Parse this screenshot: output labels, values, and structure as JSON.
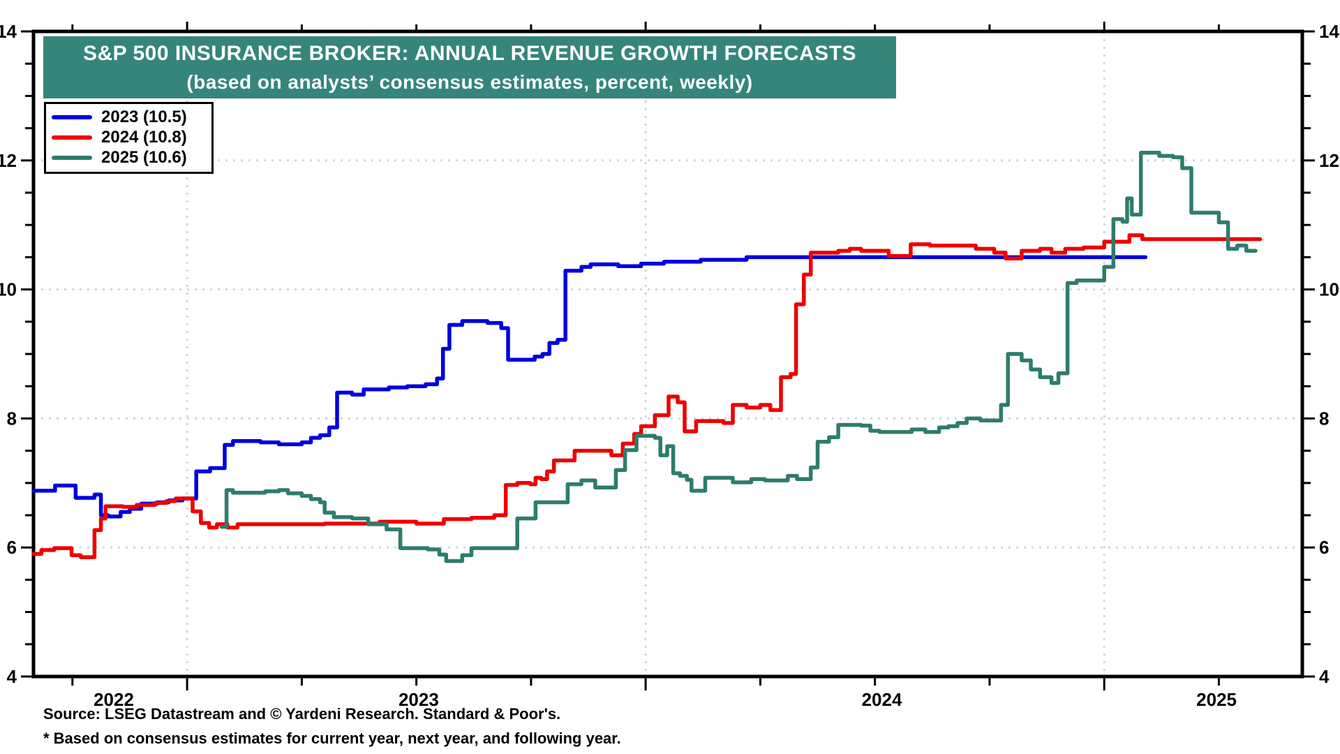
{
  "colors": {
    "banner_bg": "#35857a",
    "grid": "#d6d6d6",
    "axis": "#000000",
    "background": "#ffffff"
  },
  "chart_data": {
    "type": "line",
    "title": "S&P 500 INSURANCE BROKER: ANNUAL REVENUE GROWTH FORECASTS",
    "subtitle": "(based on analysts’ consensus estimates, percent, weekly)",
    "x_axis": {
      "min": 2022.665,
      "max": 2025.432,
      "gridlines": [
        2023,
        2024,
        2025
      ],
      "minor_tick_step": 0.25,
      "labels": [
        {
          "pos": 2022.84,
          "text": "2022"
        },
        {
          "pos": 2023.505,
          "text": "2023"
        },
        {
          "pos": 2024.515,
          "text": "2024"
        },
        {
          "pos": 2025.245,
          "text": "2025"
        }
      ]
    },
    "y_axis": {
      "min": 4,
      "max": 14,
      "minor_tick_step": 0.5,
      "label_values": [
        4,
        6,
        8,
        10,
        12,
        14
      ],
      "gridlines": [
        6,
        8,
        10,
        12
      ],
      "unit": "percent"
    },
    "legend": {
      "items": [
        {
          "label": "2023 (10.5)",
          "color": "#0000dd"
        },
        {
          "label": "2024 (10.8)",
          "color": "#ee0000"
        },
        {
          "label": "2025 (10.6)",
          "color": "#2e7c6c"
        }
      ]
    },
    "series": [
      {
        "name": "2023",
        "final_value": 10.5,
        "color": "#0000dd",
        "points": [
          [
            2022.665,
            6.88
          ],
          [
            2022.712,
            6.96
          ],
          [
            2022.757,
            6.77
          ],
          [
            2022.798,
            6.82
          ],
          [
            2022.812,
            6.5
          ],
          [
            2022.828,
            6.48
          ],
          [
            2022.855,
            6.55
          ],
          [
            2022.875,
            6.6
          ],
          [
            2022.9,
            6.68
          ],
          [
            2022.935,
            6.7
          ],
          [
            2022.96,
            6.73
          ],
          [
            2022.99,
            6.76
          ],
          [
            2023.02,
            7.18
          ],
          [
            2023.05,
            7.23
          ],
          [
            2023.082,
            7.59
          ],
          [
            2023.1,
            7.65
          ],
          [
            2023.16,
            7.63
          ],
          [
            2023.2,
            7.6
          ],
          [
            2023.25,
            7.63
          ],
          [
            2023.27,
            7.7
          ],
          [
            2023.29,
            7.74
          ],
          [
            2023.31,
            7.86
          ],
          [
            2023.327,
            8.4
          ],
          [
            2023.36,
            8.37
          ],
          [
            2023.385,
            8.45
          ],
          [
            2023.44,
            8.48
          ],
          [
            2023.48,
            8.5
          ],
          [
            2023.52,
            8.53
          ],
          [
            2023.545,
            8.62
          ],
          [
            2023.558,
            9.08
          ],
          [
            2023.572,
            9.45
          ],
          [
            2023.6,
            9.51
          ],
          [
            2023.655,
            9.48
          ],
          [
            2023.685,
            9.4
          ],
          [
            2023.7,
            8.91
          ],
          [
            2023.745,
            8.91
          ],
          [
            2023.758,
            8.96
          ],
          [
            2023.775,
            9.0
          ],
          [
            2023.79,
            9.17
          ],
          [
            2023.808,
            9.22
          ],
          [
            2023.825,
            10.29
          ],
          [
            2023.86,
            10.35
          ],
          [
            2023.88,
            10.39
          ],
          [
            2023.94,
            10.36
          ],
          [
            2023.99,
            10.4
          ],
          [
            2024.04,
            10.43
          ],
          [
            2024.12,
            10.46
          ],
          [
            2024.22,
            10.5
          ],
          [
            2025.09,
            10.5
          ]
        ]
      },
      {
        "name": "2024",
        "final_value": 10.8,
        "color": "#ee0000",
        "points": [
          [
            2022.665,
            5.9
          ],
          [
            2022.682,
            5.96
          ],
          [
            2022.71,
            5.99
          ],
          [
            2022.748,
            5.88
          ],
          [
            2022.768,
            5.85
          ],
          [
            2022.798,
            6.27
          ],
          [
            2022.812,
            6.45
          ],
          [
            2022.822,
            6.64
          ],
          [
            2022.86,
            6.63
          ],
          [
            2022.89,
            6.66
          ],
          [
            2022.93,
            6.69
          ],
          [
            2022.955,
            6.72
          ],
          [
            2022.975,
            6.76
          ],
          [
            2023.012,
            6.56
          ],
          [
            2023.03,
            6.38
          ],
          [
            2023.048,
            6.31
          ],
          [
            2023.065,
            6.36
          ],
          [
            2023.088,
            6.31
          ],
          [
            2023.11,
            6.36
          ],
          [
            2023.3,
            6.37
          ],
          [
            2023.42,
            6.4
          ],
          [
            2023.5,
            6.37
          ],
          [
            2023.56,
            6.44
          ],
          [
            2023.62,
            6.46
          ],
          [
            2023.67,
            6.5
          ],
          [
            2023.695,
            6.97
          ],
          [
            2023.72,
            7.0
          ],
          [
            2023.748,
            6.98
          ],
          [
            2023.76,
            7.08
          ],
          [
            2023.772,
            7.06
          ],
          [
            2023.785,
            7.18
          ],
          [
            2023.8,
            7.35
          ],
          [
            2023.845,
            7.5
          ],
          [
            2023.925,
            7.43
          ],
          [
            2023.95,
            7.61
          ],
          [
            2023.975,
            7.76
          ],
          [
            2023.99,
            7.88
          ],
          [
            2024.02,
            8.05
          ],
          [
            2024.05,
            8.34
          ],
          [
            2024.07,
            8.25
          ],
          [
            2024.085,
            7.8
          ],
          [
            2024.11,
            7.96
          ],
          [
            2024.17,
            7.93
          ],
          [
            2024.19,
            8.21
          ],
          [
            2024.22,
            8.17
          ],
          [
            2024.25,
            8.21
          ],
          [
            2024.272,
            8.13
          ],
          [
            2024.295,
            8.64
          ],
          [
            2024.316,
            8.69
          ],
          [
            2024.328,
            9.77
          ],
          [
            2024.345,
            10.23
          ],
          [
            2024.36,
            10.57
          ],
          [
            2024.42,
            10.6
          ],
          [
            2024.445,
            10.63
          ],
          [
            2024.47,
            10.6
          ],
          [
            2024.53,
            10.52
          ],
          [
            2024.578,
            10.7
          ],
          [
            2024.62,
            10.68
          ],
          [
            2024.72,
            10.63
          ],
          [
            2024.76,
            10.57
          ],
          [
            2024.785,
            10.48
          ],
          [
            2024.82,
            10.6
          ],
          [
            2024.86,
            10.63
          ],
          [
            2024.885,
            10.57
          ],
          [
            2024.915,
            10.63
          ],
          [
            2024.955,
            10.65
          ],
          [
            2025.0,
            10.74
          ],
          [
            2025.055,
            10.84
          ],
          [
            2025.083,
            10.78
          ],
          [
            2025.34,
            10.78
          ]
        ]
      },
      {
        "name": "2025",
        "final_value": 10.6,
        "color": "#2e7c6c",
        "points": [
          [
            2023.075,
            6.32
          ],
          [
            2023.086,
            6.89
          ],
          [
            2023.1,
            6.85
          ],
          [
            2023.17,
            6.87
          ],
          [
            2023.2,
            6.89
          ],
          [
            2023.22,
            6.84
          ],
          [
            2023.25,
            6.8
          ],
          [
            2023.27,
            6.75
          ],
          [
            2023.29,
            6.7
          ],
          [
            2023.3,
            6.54
          ],
          [
            2023.32,
            6.47
          ],
          [
            2023.36,
            6.45
          ],
          [
            2023.395,
            6.36
          ],
          [
            2023.435,
            6.28
          ],
          [
            2023.465,
            5.99
          ],
          [
            2023.525,
            5.97
          ],
          [
            2023.55,
            5.89
          ],
          [
            2023.565,
            5.79
          ],
          [
            2023.6,
            5.88
          ],
          [
            2023.62,
            5.99
          ],
          [
            2023.7,
            5.99
          ],
          [
            2023.72,
            6.45
          ],
          [
            2023.76,
            6.7
          ],
          [
            2023.83,
            6.98
          ],
          [
            2023.86,
            7.04
          ],
          [
            2023.89,
            6.93
          ],
          [
            2023.935,
            7.2
          ],
          [
            2023.955,
            7.51
          ],
          [
            2023.98,
            7.73
          ],
          [
            2024.02,
            7.7
          ],
          [
            2024.032,
            7.43
          ],
          [
            2024.047,
            7.57
          ],
          [
            2024.06,
            7.15
          ],
          [
            2024.075,
            7.11
          ],
          [
            2024.09,
            7.05
          ],
          [
            2024.1,
            6.88
          ],
          [
            2024.13,
            7.08
          ],
          [
            2024.19,
            7.01
          ],
          [
            2024.23,
            7.06
          ],
          [
            2024.26,
            7.04
          ],
          [
            2024.31,
            7.11
          ],
          [
            2024.33,
            7.06
          ],
          [
            2024.36,
            7.24
          ],
          [
            2024.375,
            7.64
          ],
          [
            2024.4,
            7.71
          ],
          [
            2024.42,
            7.9
          ],
          [
            2024.47,
            7.89
          ],
          [
            2024.49,
            7.81
          ],
          [
            2024.51,
            7.79
          ],
          [
            2024.58,
            7.83
          ],
          [
            2024.61,
            7.79
          ],
          [
            2024.64,
            7.86
          ],
          [
            2024.66,
            7.88
          ],
          [
            2024.68,
            7.93
          ],
          [
            2024.7,
            8.0
          ],
          [
            2024.73,
            7.97
          ],
          [
            2024.775,
            8.21
          ],
          [
            2024.79,
            9.0
          ],
          [
            2024.82,
            8.9
          ],
          [
            2024.84,
            8.76
          ],
          [
            2024.86,
            8.64
          ],
          [
            2024.885,
            8.55
          ],
          [
            2024.9,
            8.7
          ],
          [
            2024.92,
            10.1
          ],
          [
            2024.94,
            10.14
          ],
          [
            2025.0,
            10.35
          ],
          [
            2025.02,
            11.09
          ],
          [
            2025.04,
            11.05
          ],
          [
            2025.05,
            11.41
          ],
          [
            2025.06,
            11.16
          ],
          [
            2025.08,
            12.12
          ],
          [
            2025.12,
            12.07
          ],
          [
            2025.15,
            12.05
          ],
          [
            2025.17,
            11.88
          ],
          [
            2025.19,
            11.19
          ],
          [
            2025.25,
            11.04
          ],
          [
            2025.27,
            10.63
          ],
          [
            2025.29,
            10.68
          ],
          [
            2025.31,
            10.6
          ],
          [
            2025.33,
            10.6
          ]
        ]
      }
    ],
    "source": "Source: LSEG Datastream and © Yardeni Research. Standard & Poor's.",
    "footnote": "* Based on consensus estimates for current year, next year, and following year."
  }
}
